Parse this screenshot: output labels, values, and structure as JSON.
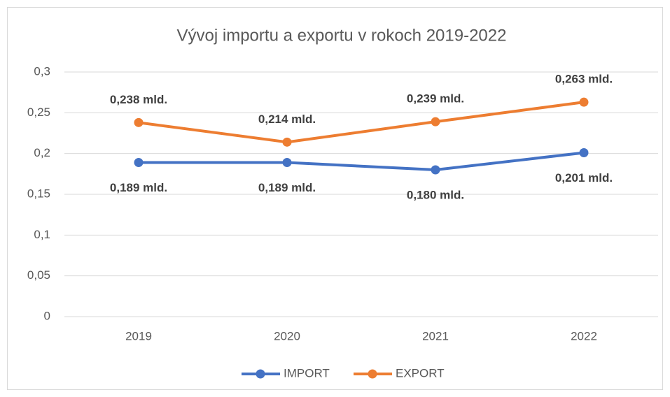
{
  "chart_data": {
    "type": "line",
    "title": "Vývoj importu a exportu v rokoch 2019-2022",
    "categories": [
      "2019",
      "2020",
      "2021",
      "2022"
    ],
    "series": [
      {
        "name": "IMPORT",
        "color": "#4472c4",
        "values": [
          0.189,
          0.189,
          0.18,
          0.201
        ],
        "value_labels": [
          "0,189 mld.",
          "0,189 mld.",
          "0,180 mld.",
          "0,201 mld."
        ]
      },
      {
        "name": "EXPORT",
        "color": "#ed7d31",
        "values": [
          0.238,
          0.214,
          0.239,
          0.263
        ],
        "value_labels": [
          "0,238 mld.",
          "0,214 mld.",
          "0,239 mld.",
          "0,263 mld."
        ]
      }
    ],
    "ylim": [
      0,
      0.3
    ],
    "yticks": [
      0,
      {
        "value": 0.05,
        "label": "0,05"
      },
      {
        "value": 0.1,
        "label": "0,1"
      },
      {
        "value": 0.15,
        "label": "0,15"
      },
      {
        "value": 0.2,
        "label": "0,2"
      },
      {
        "value": 0.25,
        "label": "0,25"
      },
      {
        "value": 0.3,
        "label": "0,3"
      }
    ],
    "grid": true,
    "legend": "bottom"
  }
}
